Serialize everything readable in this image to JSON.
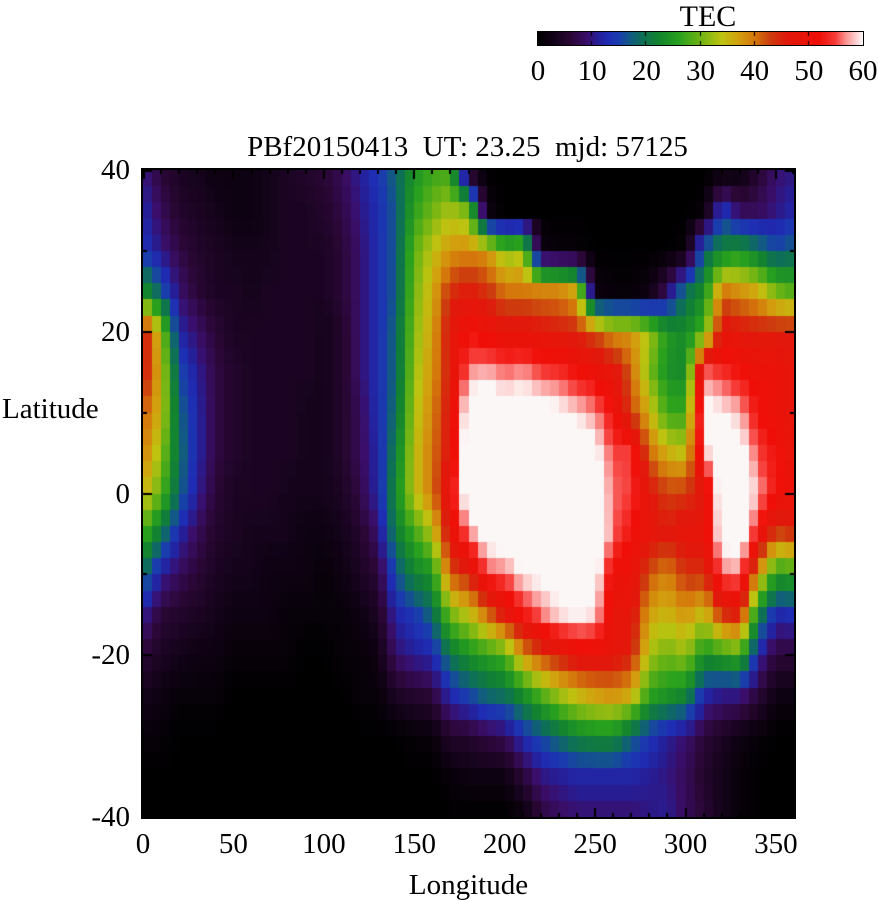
{
  "chart_data": {
    "type": "heatmap",
    "title": "PBf20150413  UT: 23.25  mjd: 57125",
    "xlabel": "Longitude",
    "ylabel": "Latitude",
    "xlim": [
      0,
      360
    ],
    "ylim": [
      -40,
      40
    ],
    "zlim": [
      0,
      60
    ],
    "xticks": [
      0,
      50,
      100,
      150,
      200,
      250,
      300,
      350
    ],
    "xminor_step": 10,
    "yticks": [
      40,
      20,
      0,
      -20,
      -40
    ],
    "yminor_step": 10,
    "grid_lines": "off",
    "colorbar": {
      "label": "TEC",
      "min": 0,
      "max": 60,
      "ticks": [
        0,
        10,
        20,
        30,
        40,
        50,
        60
      ],
      "notches": [
        10,
        20,
        30,
        40,
        50
      ],
      "position": "top"
    },
    "palette_stops": [
      [
        0,
        0,
        0,
        0
      ],
      [
        3,
        20,
        3,
        26
      ],
      [
        6,
        42,
        7,
        53
      ],
      [
        9,
        58,
        14,
        106
      ],
      [
        11,
        38,
        30,
        150
      ],
      [
        13,
        30,
        45,
        180
      ],
      [
        15,
        25,
        62,
        172
      ],
      [
        17,
        18,
        90,
        130
      ],
      [
        19,
        14,
        110,
        90
      ],
      [
        22,
        18,
        130,
        48
      ],
      [
        26,
        40,
        160,
        30
      ],
      [
        30,
        110,
        180,
        20
      ],
      [
        34,
        190,
        195,
        16
      ],
      [
        37,
        210,
        160,
        14
      ],
      [
        40,
        212,
        120,
        12
      ],
      [
        43,
        205,
        60,
        14
      ],
      [
        46,
        225,
        25,
        12
      ],
      [
        52,
        240,
        15,
        8
      ],
      [
        55,
        246,
        60,
        56
      ],
      [
        57,
        250,
        150,
        148
      ],
      [
        59,
        252,
        215,
        214
      ],
      [
        60,
        252,
        247,
        247
      ]
    ],
    "lon_values": [
      0,
      10,
      20,
      30,
      40,
      50,
      60,
      70,
      80,
      90,
      100,
      110,
      120,
      130,
      140,
      150,
      160,
      170,
      180,
      190,
      200,
      210,
      220,
      230,
      240,
      250,
      260,
      270,
      280,
      290,
      300,
      310,
      320,
      330,
      340,
      350,
      360
    ],
    "lat_values": [
      40,
      35,
      30,
      25,
      20,
      15,
      10,
      5,
      0,
      -5,
      -10,
      -15,
      -20,
      -25,
      -30,
      -35,
      -40
    ],
    "grid": [
      [
        10,
        6,
        4,
        3,
        2,
        2,
        2,
        3,
        4,
        5,
        6,
        8,
        11,
        14,
        18,
        24,
        27,
        27,
        1,
        0,
        0,
        0,
        0,
        0,
        0,
        0,
        0,
        0,
        0,
        0,
        0,
        0,
        0,
        1,
        5,
        9,
        10
      ],
      [
        12,
        8,
        5,
        4,
        3,
        2,
        2,
        3,
        4,
        4,
        5,
        7,
        10,
        13,
        17,
        26,
        30,
        33,
        30,
        2,
        0,
        0,
        0,
        0,
        0,
        0,
        0,
        0,
        0,
        0,
        0,
        1,
        14,
        8,
        8,
        10,
        12
      ],
      [
        14,
        10,
        7,
        5,
        4,
        3,
        3,
        3,
        4,
        4,
        4,
        6,
        9,
        13,
        17,
        29,
        34,
        38,
        39,
        38,
        31,
        33,
        2,
        1,
        1,
        0,
        0,
        0,
        0,
        0,
        1,
        18,
        22,
        24,
        20,
        16,
        18
      ],
      [
        24,
        17,
        9,
        6,
        4,
        4,
        3,
        4,
        4,
        4,
        4,
        6,
        9,
        13,
        17,
        30,
        36,
        44,
        46,
        44,
        40,
        40,
        39,
        39,
        36,
        2,
        1,
        1,
        2,
        8,
        19,
        23,
        40,
        38,
        36,
        30,
        28
      ],
      [
        48,
        33,
        12,
        9,
        6,
        4,
        4,
        4,
        4,
        4,
        3,
        5,
        9,
        13,
        18,
        31,
        37,
        47,
        52,
        50,
        48,
        48,
        47,
        46,
        45,
        42,
        38,
        38,
        33,
        25,
        23,
        28,
        48,
        47,
        46,
        46,
        46
      ],
      [
        47,
        35,
        16,
        11,
        7,
        5,
        4,
        4,
        4,
        4,
        3,
        5,
        9,
        13,
        18,
        32,
        38,
        46,
        57,
        58,
        56,
        57,
        55,
        54,
        52,
        50,
        48,
        41,
        31,
        24,
        23,
        56,
        54,
        52,
        50,
        50,
        48
      ],
      [
        42,
        35,
        18,
        12,
        7,
        5,
        4,
        4,
        4,
        3,
        3,
        5,
        8,
        13,
        19,
        33,
        39,
        47,
        63,
        64,
        63,
        64,
        62,
        61,
        59,
        57,
        52,
        43,
        36,
        27,
        27,
        62,
        60,
        58,
        52,
        50,
        48
      ],
      [
        40,
        32,
        19,
        12,
        7,
        5,
        4,
        4,
        4,
        3,
        3,
        5,
        8,
        12,
        21,
        34,
        40,
        47,
        65,
        66,
        66,
        67,
        66,
        65,
        64,
        61,
        55,
        55,
        41,
        36,
        34,
        58,
        62,
        62,
        55,
        52,
        48
      ],
      [
        36,
        29,
        18,
        11,
        6,
        4,
        4,
        4,
        3,
        3,
        3,
        4,
        7,
        12,
        23,
        34,
        40,
        50,
        64,
        65,
        66,
        67,
        67,
        67,
        66,
        64,
        56,
        55,
        47,
        43,
        44,
        46,
        64,
        64,
        58,
        52,
        50
      ],
      [
        28,
        20,
        12,
        8,
        5,
        4,
        3,
        3,
        3,
        2,
        2,
        3,
        5,
        9,
        21,
        27,
        33,
        48,
        56,
        62,
        63,
        64,
        65,
        66,
        66,
        65,
        56,
        52,
        48,
        46,
        48,
        48,
        62,
        63,
        52,
        42,
        44
      ],
      [
        19,
        11,
        8,
        6,
        4,
        3,
        3,
        2,
        2,
        2,
        1,
        2,
        4,
        6,
        16,
        22,
        24,
        42,
        45,
        55,
        56,
        60,
        61,
        62,
        63,
        62,
        50,
        50,
        42,
        39,
        44,
        44,
        56,
        57,
        38,
        25,
        26
      ],
      [
        11,
        6,
        5,
        4,
        3,
        2,
        2,
        2,
        1,
        1,
        1,
        1,
        2,
        4,
        12,
        14,
        18,
        30,
        34,
        40,
        47,
        52,
        56,
        59,
        60,
        59,
        48,
        48,
        37,
        35,
        38,
        34,
        44,
        46,
        22,
        12,
        13
      ],
      [
        6,
        4,
        3,
        2,
        2,
        1,
        1,
        1,
        1,
        0,
        0,
        1,
        1,
        2,
        9,
        11,
        12,
        20,
        24,
        26,
        28,
        38,
        43,
        46,
        49,
        49,
        48,
        46,
        33,
        30,
        32,
        24,
        26,
        28,
        12,
        6,
        6
      ],
      [
        3,
        2,
        1,
        1,
        1,
        0,
        0,
        0,
        0,
        0,
        0,
        0,
        1,
        1,
        4,
        5,
        6,
        12,
        15,
        18,
        19,
        23,
        28,
        32,
        35,
        37,
        38,
        36,
        26,
        24,
        22,
        12,
        10,
        10,
        6,
        2,
        2
      ],
      [
        1,
        1,
        0,
        0,
        0,
        0,
        0,
        0,
        0,
        0,
        0,
        0,
        0,
        0,
        0,
        1,
        1,
        5,
        5,
        7,
        8,
        13,
        16,
        19,
        22,
        23,
        23,
        18,
        14,
        11,
        9,
        6,
        4,
        2,
        1,
        0,
        0
      ],
      [
        0,
        0,
        0,
        0,
        0,
        0,
        0,
        0,
        0,
        0,
        0,
        0,
        0,
        0,
        0,
        0,
        0,
        1,
        2,
        2,
        2,
        6,
        10,
        11,
        12,
        12,
        12,
        12,
        11,
        10,
        8,
        5,
        3,
        1,
        0,
        0,
        0
      ],
      [
        0,
        0,
        0,
        0,
        0,
        0,
        0,
        0,
        0,
        0,
        0,
        0,
        0,
        0,
        0,
        0,
        0,
        0,
        0,
        0,
        0,
        1,
        6,
        8,
        9,
        9,
        9,
        9,
        10,
        11,
        8,
        6,
        3,
        1,
        0,
        0,
        0
      ]
    ]
  }
}
